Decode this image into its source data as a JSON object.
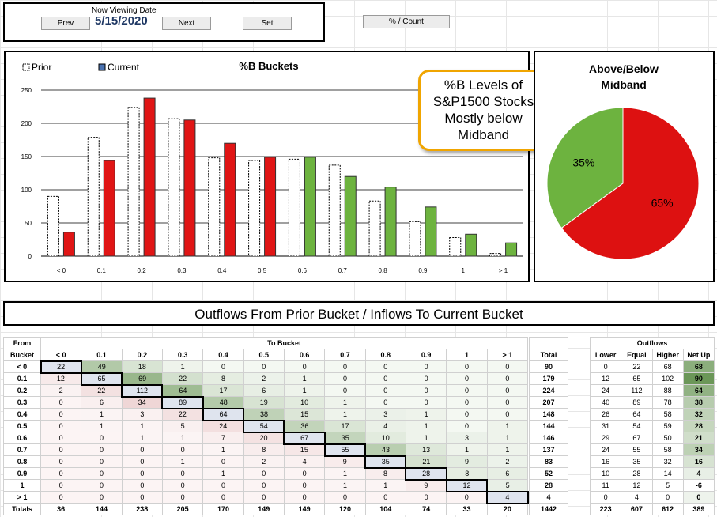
{
  "nav": {
    "caption": "Now Viewing Date",
    "prev_label": "Prev",
    "date": "5/15/2020",
    "next_label": "Next",
    "set_label": "Set",
    "mode_label": "% / Count"
  },
  "colors": {
    "prior": "#ffffff",
    "current_below": "#e01515",
    "current_above": "#6db33f",
    "pie_below": "#dd1111",
    "pie_above": "#6db33f",
    "outflow_high": "#6f9a5a",
    "inflow_high": "#d9a0a0"
  },
  "chart_data": [
    {
      "type": "bar",
      "title": "%B Buckets",
      "categories": [
        "< 0",
        "0.1",
        "0.2",
        "0.3",
        "0.4",
        "0.5",
        "0.6",
        "0.7",
        "0.8",
        "0.9",
        "1",
        "> 1"
      ],
      "series": [
        {
          "name": "Prior",
          "values": [
            90,
            179,
            224,
            207,
            148,
            144,
            146,
            137,
            83,
            52,
            28,
            4
          ]
        },
        {
          "name": "Current",
          "values": [
            36,
            144,
            238,
            205,
            170,
            149,
            149,
            120,
            104,
            74,
            33,
            20
          ]
        }
      ],
      "ylim": [
        0,
        250
      ],
      "yticks": [
        0,
        50,
        100,
        150,
        200,
        250
      ],
      "grid": true,
      "legend": "top-left"
    },
    {
      "type": "pie",
      "title": "Above/Below Midband",
      "slices": [
        {
          "label": "35%",
          "value": 35
        },
        {
          "label": "65%",
          "value": 65
        }
      ]
    }
  ],
  "callout": [
    "%B Levels of",
    "S&P1500 Stocks",
    "Mostly below",
    "Midband"
  ],
  "flow_title": "Outflows From Prior Bucket / Inflows To Current Bucket",
  "flow": {
    "from_label": "From",
    "bucket_label": "Bucket",
    "to_label": "To Bucket",
    "total_label": "Total",
    "totals_label": "Totals",
    "outflows_label": "Outflows",
    "out_headers": [
      "Lower",
      "Equal",
      "Higher",
      "Net Up"
    ],
    "buckets": [
      "< 0",
      "0.1",
      "0.2",
      "0.3",
      "0.4",
      "0.5",
      "0.6",
      "0.7",
      "0.8",
      "0.9",
      "1",
      "> 1"
    ],
    "matrix": [
      [
        22,
        49,
        18,
        1,
        0,
        0,
        0,
        0,
        0,
        0,
        0,
        0
      ],
      [
        12,
        65,
        69,
        22,
        8,
        2,
        1,
        0,
        0,
        0,
        0,
        0
      ],
      [
        2,
        22,
        112,
        64,
        17,
        6,
        1,
        0,
        0,
        0,
        0,
        0
      ],
      [
        0,
        6,
        34,
        89,
        48,
        19,
        10,
        1,
        0,
        0,
        0,
        0
      ],
      [
        0,
        1,
        3,
        22,
        64,
        38,
        15,
        1,
        3,
        1,
        0,
        0
      ],
      [
        0,
        1,
        1,
        5,
        24,
        54,
        36,
        17,
        4,
        1,
        0,
        1
      ],
      [
        0,
        0,
        1,
        1,
        7,
        20,
        67,
        35,
        10,
        1,
        3,
        1
      ],
      [
        0,
        0,
        0,
        0,
        1,
        8,
        15,
        55,
        43,
        13,
        1,
        1
      ],
      [
        0,
        0,
        0,
        1,
        0,
        2,
        4,
        9,
        35,
        21,
        9,
        2
      ],
      [
        0,
        0,
        0,
        0,
        1,
        0,
        0,
        1,
        8,
        28,
        8,
        6
      ],
      [
        0,
        0,
        0,
        0,
        0,
        0,
        0,
        1,
        1,
        9,
        12,
        5
      ],
      [
        0,
        0,
        0,
        0,
        0,
        0,
        0,
        0,
        0,
        0,
        0,
        4
      ]
    ],
    "row_totals": [
      90,
      179,
      224,
      207,
      148,
      144,
      146,
      137,
      83,
      52,
      28,
      4
    ],
    "col_totals": [
      36,
      144,
      238,
      205,
      170,
      149,
      149,
      120,
      104,
      74,
      33,
      20
    ],
    "grand_total": 1442,
    "outflows": [
      [
        0,
        22,
        68,
        68
      ],
      [
        12,
        65,
        102,
        90
      ],
      [
        24,
        112,
        88,
        64
      ],
      [
        40,
        89,
        78,
        38
      ],
      [
        26,
        64,
        58,
        32
      ],
      [
        31,
        54,
        59,
        28
      ],
      [
        29,
        67,
        50,
        21
      ],
      [
        24,
        55,
        58,
        34
      ],
      [
        16,
        35,
        32,
        16
      ],
      [
        10,
        28,
        14,
        4
      ],
      [
        11,
        12,
        5,
        -6
      ],
      [
        0,
        4,
        0,
        0
      ]
    ],
    "outflow_totals": [
      223,
      607,
      612,
      389
    ]
  }
}
